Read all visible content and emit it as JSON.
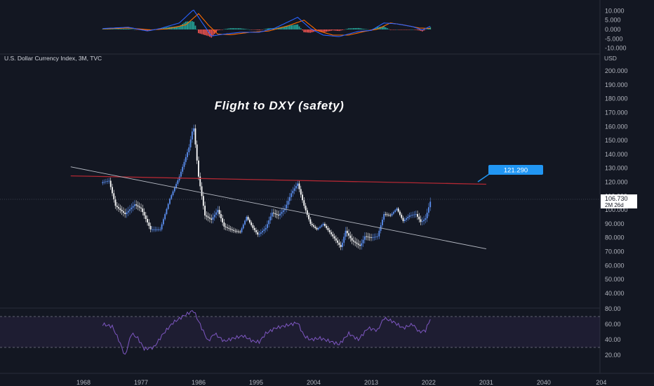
{
  "symbol_label": "U.S. Dollar Currency Index, 3M, TVC",
  "currency_label": "USD",
  "annotation_title": "Flight to DXY (safety)",
  "colors": {
    "background": "#131722",
    "up_bar": "#5b8ff0",
    "down_bar": "#ffffff",
    "resistance_line": "#b22833",
    "trend_line": "#b8bcc6",
    "target_badge": "#2196f3",
    "rsi_line": "#7e57c2",
    "macd_line": "#2962ff",
    "signal_line": "#ff6d00",
    "hist_pos": "#26a69a",
    "hist_neg": "#ef5350"
  },
  "price_axis": {
    "ticks": [
      "200.000",
      "190.000",
      "180.000",
      "170.000",
      "160.000",
      "150.000",
      "140.000",
      "130.000",
      "120.000",
      "110.000",
      "100.000",
      "90.000",
      "80.000",
      "70.000",
      "60.000",
      "50.000",
      "40.000"
    ],
    "last_price": "106.730",
    "countdown": "2M 26d"
  },
  "target_label": "121.290",
  "macd_axis": {
    "ticks": [
      "10.000",
      "5.000",
      "0.000",
      "-5.000",
      "-10.000"
    ]
  },
  "rsi_axis": {
    "ticks": [
      "80.00",
      "60.00",
      "40.00",
      "20.00"
    ]
  },
  "time_axis": {
    "ticks": [
      "1968",
      "1977",
      "1986",
      "1995",
      "2004",
      "2013",
      "2022",
      "2031",
      "2040",
      "204"
    ]
  },
  "chart_data": {
    "type": "candlestick",
    "title": "Flight to DXY (safety)",
    "symbol": "U.S. Dollar Currency Index",
    "interval": "3M",
    "y_unit": "USD",
    "ylim": [
      40,
      200
    ],
    "xlim": [
      1960,
      2044
    ],
    "last_value": 106.73,
    "anchors": [
      [
        1971.0,
        120
      ],
      [
        1972.0,
        121
      ],
      [
        1973.0,
        103
      ],
      [
        1974.5,
        97
      ],
      [
        1976.0,
        104
      ],
      [
        1977.0,
        101
      ],
      [
        1978.5,
        86
      ],
      [
        1980.0,
        86
      ],
      [
        1981.5,
        108
      ],
      [
        1983.0,
        124
      ],
      [
        1984.5,
        145
      ],
      [
        1985.2,
        161
      ],
      [
        1986.0,
        124
      ],
      [
        1987.0,
        96
      ],
      [
        1988.0,
        93
      ],
      [
        1989.0,
        100
      ],
      [
        1990.0,
        88
      ],
      [
        1991.5,
        85
      ],
      [
        1992.5,
        84
      ],
      [
        1993.5,
        95
      ],
      [
        1994.5,
        87
      ],
      [
        1995.3,
        82
      ],
      [
        1996.5,
        87
      ],
      [
        1997.5,
        98
      ],
      [
        1998.5,
        96
      ],
      [
        1999.5,
        101
      ],
      [
        2000.5,
        112
      ],
      [
        2001.5,
        119
      ],
      [
        2002.5,
        103
      ],
      [
        2003.5,
        90
      ],
      [
        2004.5,
        86
      ],
      [
        2005.5,
        90
      ],
      [
        2006.5,
        84
      ],
      [
        2007.5,
        78
      ],
      [
        2008.3,
        73
      ],
      [
        2009.0,
        85
      ],
      [
        2010.0,
        78
      ],
      [
        2011.3,
        74
      ],
      [
        2012.0,
        81
      ],
      [
        2013.0,
        80
      ],
      [
        2014.0,
        81
      ],
      [
        2015.0,
        97
      ],
      [
        2016.0,
        96
      ],
      [
        2017.0,
        101
      ],
      [
        2018.0,
        92
      ],
      [
        2019.0,
        96
      ],
      [
        2020.0,
        97
      ],
      [
        2020.8,
        91
      ],
      [
        2021.5,
        94
      ],
      [
        2022.3,
        106.73
      ]
    ],
    "resistance_line": {
      "start": [
        1966.0,
        124.5
      ],
      "end": [
        2031.0,
        118.5
      ],
      "target_value": 121.29
    },
    "trend_line": {
      "start": [
        1966.0,
        131
      ],
      "end": [
        2031.0,
        72
      ]
    },
    "rsi": {
      "ylim": [
        10,
        85
      ],
      "band": [
        30,
        70
      ],
      "anchors": [
        [
          1971.0,
          60
        ],
        [
          1972.5,
          57
        ],
        [
          1973.5,
          40
        ],
        [
          1974.5,
          19
        ],
        [
          1975.5,
          48
        ],
        [
          1976.5,
          42
        ],
        [
          1977.5,
          28
        ],
        [
          1979.0,
          30
        ],
        [
          1980.5,
          48
        ],
        [
          1982.0,
          62
        ],
        [
          1983.5,
          70
        ],
        [
          1985.2,
          78
        ],
        [
          1986.5,
          55
        ],
        [
          1987.5,
          38
        ],
        [
          1988.5,
          48
        ],
        [
          1990.0,
          38
        ],
        [
          1991.5,
          42
        ],
        [
          1993.0,
          45
        ],
        [
          1994.5,
          38
        ],
        [
          1995.5,
          37
        ],
        [
          1996.5,
          48
        ],
        [
          1998.0,
          55
        ],
        [
          1999.5,
          58
        ],
        [
          2001.5,
          62
        ],
        [
          2002.5,
          45
        ],
        [
          2003.5,
          40
        ],
        [
          2005.0,
          42
        ],
        [
          2006.5,
          38
        ],
        [
          2008.0,
          34
        ],
        [
          2009.5,
          48
        ],
        [
          2011.0,
          40
        ],
        [
          2012.5,
          55
        ],
        [
          2014.0,
          52
        ],
        [
          2015.0,
          68
        ],
        [
          2016.5,
          63
        ],
        [
          2018.0,
          55
        ],
        [
          2019.5,
          60
        ],
        [
          2020.5,
          50
        ],
        [
          2021.5,
          52
        ],
        [
          2022.3,
          68
        ]
      ]
    },
    "macd": {
      "ylim": [
        -10,
        12
      ],
      "macd_anchors": [
        [
          1971.0,
          0.5
        ],
        [
          1975.0,
          1.2
        ],
        [
          1978.0,
          -0.8
        ],
        [
          1980.0,
          0.5
        ],
        [
          1983.0,
          3.5
        ],
        [
          1985.2,
          10.6
        ],
        [
          1986.5,
          4.0
        ],
        [
          1988.0,
          -3.5
        ],
        [
          1990.0,
          -2.5
        ],
        [
          1992.5,
          -1.5
        ],
        [
          1995.5,
          -1.5
        ],
        [
          1998.0,
          0.8
        ],
        [
          2001.5,
          6.5
        ],
        [
          2003.5,
          0.5
        ],
        [
          2005.5,
          -3.0
        ],
        [
          2008.0,
          -3.8
        ],
        [
          2011.0,
          -1.0
        ],
        [
          2013.0,
          -0.5
        ],
        [
          2015.0,
          3.5
        ],
        [
          2017.0,
          3.0
        ],
        [
          2019.5,
          1.5
        ],
        [
          2021.0,
          -0.3
        ],
        [
          2022.3,
          1.8
        ]
      ],
      "signal_anchors": [
        [
          1971.0,
          0.3
        ],
        [
          1975.0,
          0.8
        ],
        [
          1978.5,
          -0.2
        ],
        [
          1981.0,
          0.3
        ],
        [
          1984.0,
          2.5
        ],
        [
          1986.0,
          8.5
        ],
        [
          1987.5,
          2.5
        ],
        [
          1989.0,
          -2.5
        ],
        [
          1991.0,
          -2.8
        ],
        [
          1994.0,
          -1.5
        ],
        [
          1997.0,
          -0.8
        ],
        [
          2000.0,
          2.0
        ],
        [
          2002.5,
          5.0
        ],
        [
          2004.5,
          -0.5
        ],
        [
          2007.0,
          -3.0
        ],
        [
          2009.5,
          -3.0
        ],
        [
          2012.0,
          -1.0
        ],
        [
          2014.0,
          0.2
        ],
        [
          2016.0,
          3.5
        ],
        [
          2018.0,
          2.5
        ],
        [
          2020.5,
          0.8
        ],
        [
          2022.3,
          0.5
        ]
      ]
    }
  }
}
